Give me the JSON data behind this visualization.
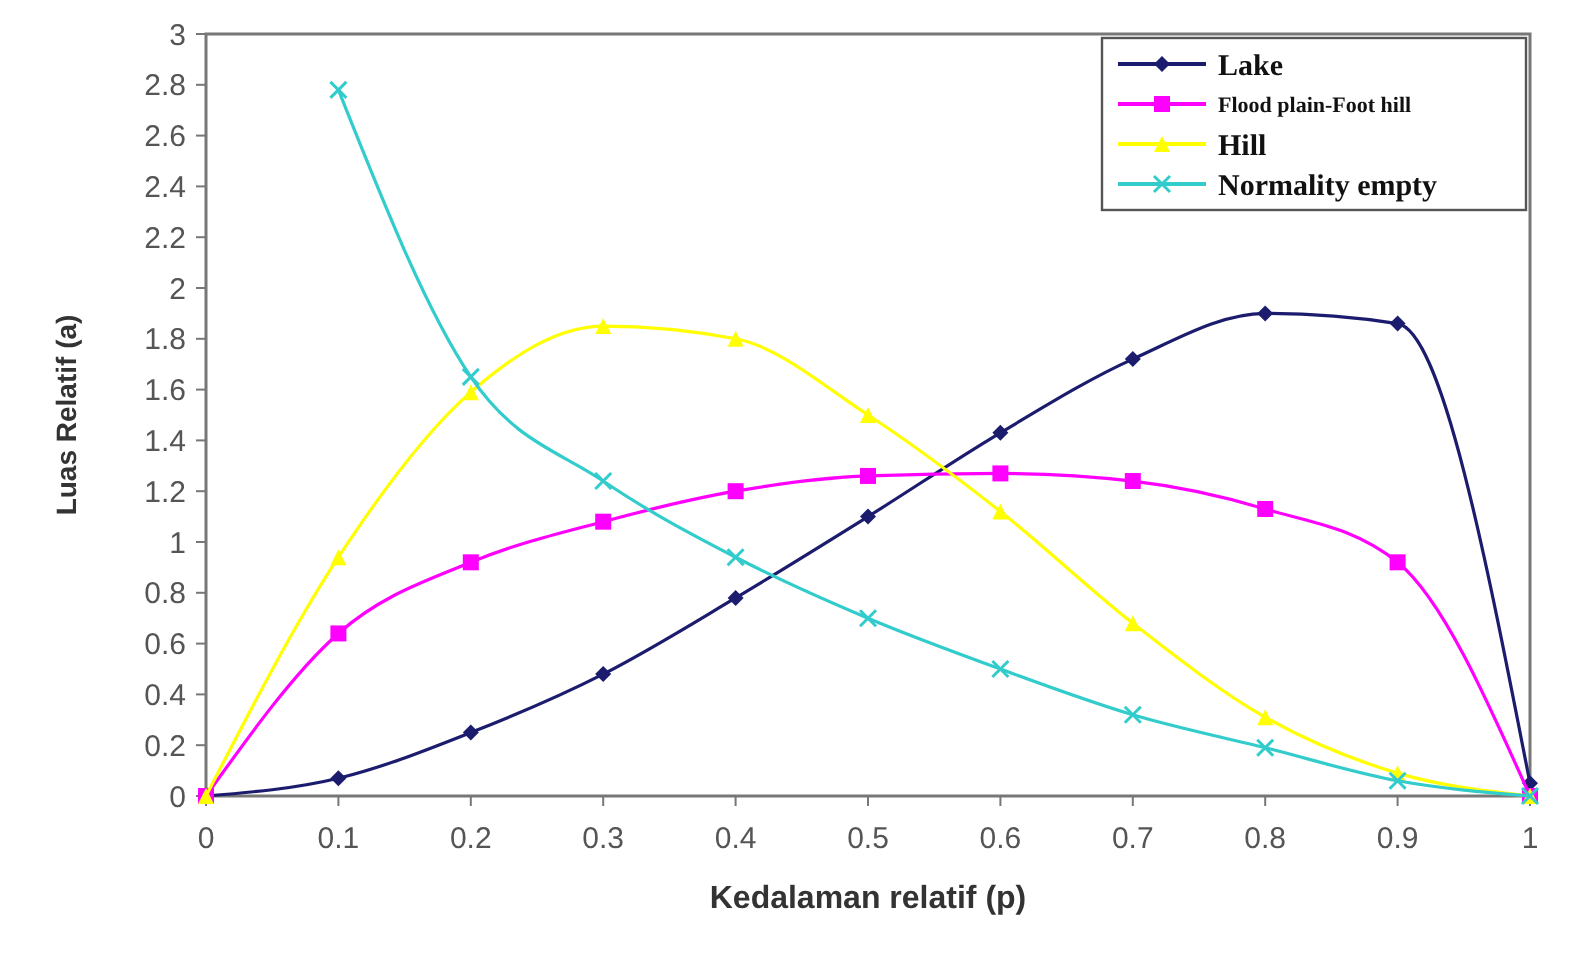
{
  "chart_data": {
    "type": "line",
    "xlabel": "Kedalaman relatif (p)",
    "ylabel": "Luas Relatif (a)",
    "x": [
      0,
      0.1,
      0.2,
      0.3,
      0.4,
      0.5,
      0.6,
      0.7,
      0.8,
      0.9,
      1
    ],
    "series": [
      {
        "name": "Lake",
        "color": "#1c1c6e",
        "marker": "diamond",
        "values": [
          0,
          0.07,
          0.25,
          0.48,
          0.78,
          1.1,
          1.43,
          1.72,
          1.9,
          1.86,
          0.05
        ]
      },
      {
        "name": "Flood plain-Foot hill",
        "color": "#ff00ff",
        "marker": "square",
        "values": [
          0,
          0.64,
          0.92,
          1.08,
          1.2,
          1.26,
          1.27,
          1.24,
          1.13,
          0.92,
          0
        ]
      },
      {
        "name": "Hill",
        "color": "#ffff00",
        "marker": "triangle",
        "values": [
          0,
          0.94,
          1.59,
          1.85,
          1.8,
          1.5,
          1.12,
          0.68,
          0.31,
          0.09,
          0
        ]
      },
      {
        "name": "Normality empty",
        "color": "#33cccc",
        "marker": "cross",
        "values": [
          null,
          2.78,
          1.65,
          1.24,
          0.94,
          0.7,
          0.5,
          0.32,
          0.19,
          0.06,
          0
        ]
      }
    ],
    "xlim": [
      0,
      1
    ],
    "xticks": [
      0,
      0.1,
      0.2,
      0.3,
      0.4,
      0.5,
      0.6,
      0.7,
      0.8,
      0.9,
      1
    ],
    "ylim": [
      0,
      3
    ],
    "yticks": [
      0,
      0.2,
      0.4,
      0.6,
      0.8,
      1,
      1.2,
      1.4,
      1.6,
      1.8,
      2,
      2.2,
      2.4,
      2.6,
      2.8,
      3
    ],
    "legend": "top right",
    "grid": false
  }
}
